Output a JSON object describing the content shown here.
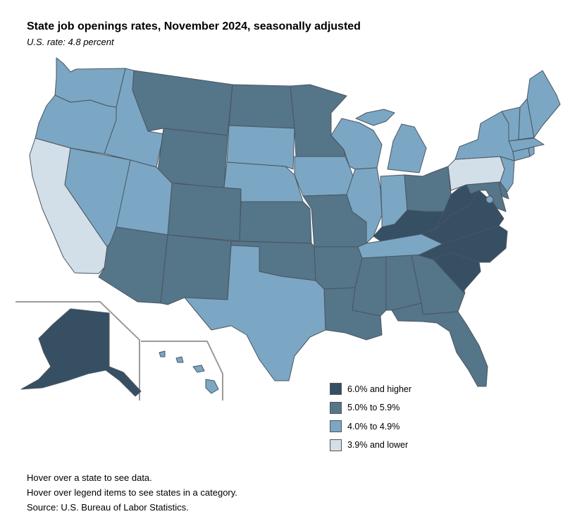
{
  "header": {
    "title": "State job openings rates, November 2024, seasonally adjusted",
    "subtitle": "U.S. rate: 4.8 percent"
  },
  "legend": {
    "items": [
      {
        "key": "c1",
        "label": "6.0% and higher",
        "color": "#374f62"
      },
      {
        "key": "c2",
        "label": "5.0% to 5.9%",
        "color": "#557589"
      },
      {
        "key": "c3",
        "label": "4.0% to 4.9%",
        "color": "#7ba7c4"
      },
      {
        "key": "c4",
        "label": "3.9% and lower",
        "color": "#d3dfe8"
      }
    ]
  },
  "map": {
    "state_categories": {
      "WA": "c3",
      "OR": "c3",
      "CA": "c4",
      "NV": "c3",
      "ID": "c3",
      "MT": "c2",
      "WY": "c2",
      "UT": "c3",
      "AZ": "c2",
      "CO": "c2",
      "NM": "c2",
      "ND": "c2",
      "SD": "c3",
      "NE": "c3",
      "KS": "c2",
      "OK": "c2",
      "TX": "c3",
      "MN": "c2",
      "IA": "c3",
      "MO": "c2",
      "AR": "c2",
      "LA": "c2",
      "WI": "c3",
      "IL": "c3",
      "MI": "c3",
      "IN": "c3",
      "OH": "c2",
      "KY": "c1",
      "TN": "c3",
      "MS": "c2",
      "AL": "c2",
      "GA": "c2",
      "FL": "c2",
      "SC": "c1",
      "NC": "c1",
      "VA": "c1",
      "WV": "c1",
      "MD": "c2",
      "DE": "c2",
      "PA": "c4",
      "NJ": "c3",
      "NY": "c3",
      "CT": "c3",
      "RI": "c3",
      "MA": "c3",
      "VT": "c3",
      "NH": "c3",
      "ME": "c3",
      "DC": "c3",
      "AK": "c1",
      "HI": "c3"
    }
  },
  "notes": {
    "hover_state": "Hover over a state to see data.",
    "hover_legend": "Hover over legend items to see states in a category.",
    "source": "Source: U.S. Bureau of Labor Statistics."
  }
}
